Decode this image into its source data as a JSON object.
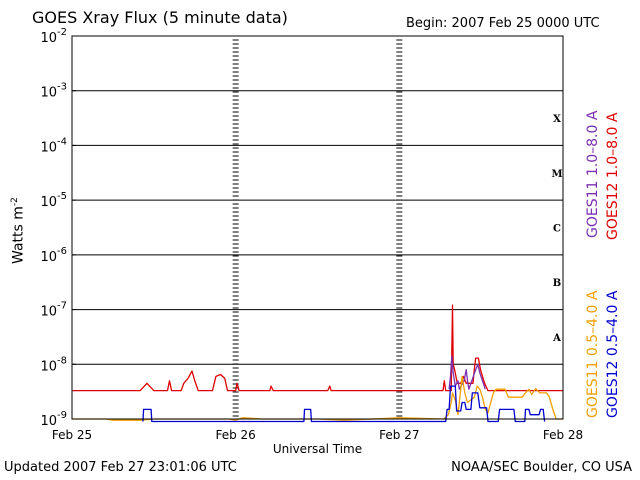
{
  "title": "GOES Xray Flux (5 minute data)",
  "begin": "Begin:  2007 Feb 25 0000 UTC",
  "updated": "Updated 2007 Feb 27 23:01:06 UTC",
  "credit": "NOAA/SEC Boulder, CO USA",
  "colors": {
    "goes11_long": "#7a2fb0",
    "goes12_long": "#e00000",
    "goes11_short": "#f0a000",
    "goes12_short": "#0000d0"
  },
  "chart_data": {
    "type": "line",
    "title": "GOES Xray Flux (5 minute data)",
    "xlabel": "Universal Time",
    "ylabel": "Watts m",
    "ylabel_sup": "-2",
    "yscale": "log",
    "ylim": [
      1e-09,
      0.01
    ],
    "xlim": [
      0,
      72
    ],
    "x_unit": "hours since 2007 Feb 25 0000 UTC",
    "x_ticks": [
      {
        "x": 0,
        "label": "Feb 25"
      },
      {
        "x": 24,
        "label": "Feb 26"
      },
      {
        "x": 48,
        "label": "Feb 27"
      },
      {
        "x": 72,
        "label": "Feb 28"
      }
    ],
    "y_ticks": [
      {
        "exp": -2,
        "base": "10",
        "sup": "-2"
      },
      {
        "exp": -3,
        "base": "10",
        "sup": "-3"
      },
      {
        "exp": -4,
        "base": "10",
        "sup": "-4"
      },
      {
        "exp": -5,
        "base": "10",
        "sup": "-5"
      },
      {
        "exp": -6,
        "base": "10",
        "sup": "-6"
      },
      {
        "exp": -7,
        "base": "10",
        "sup": "-7"
      },
      {
        "exp": -8,
        "base": "10",
        "sup": "-8"
      },
      {
        "exp": -9,
        "base": "10",
        "sup": "-9"
      }
    ],
    "flare_classes": [
      {
        "label": "X",
        "exp": -3.5
      },
      {
        "label": "M",
        "exp": -4.5
      },
      {
        "label": "C",
        "exp": -5.5
      },
      {
        "label": "B",
        "exp": -6.5
      },
      {
        "label": "A",
        "exp": -7.5
      }
    ],
    "grid": true,
    "legend": [
      {
        "label": "GOES11 1.0–8.0 A",
        "color": "#7a2fb0"
      },
      {
        "label": "GOES12 1.0–8.0 A",
        "color": "#e00000"
      },
      {
        "label": "GOES11 0.5–4.0 A",
        "color": "#f0a000"
      },
      {
        "label": "GOES12 0.5–4.0 A",
        "color": "#0000d0"
      }
    ],
    "series": [
      {
        "name": "GOES12 1.0–8.0 A",
        "color": "#e00000",
        "points": [
          [
            0,
            3.3e-09
          ],
          [
            10,
            3.3e-09
          ],
          [
            11,
            4.5e-09
          ],
          [
            12,
            3.3e-09
          ],
          [
            14,
            3.3e-09
          ],
          [
            14.3,
            5e-09
          ],
          [
            14.6,
            3.3e-09
          ],
          [
            16,
            3.3e-09
          ],
          [
            16.4,
            4.5e-09
          ],
          [
            17,
            5.5e-09
          ],
          [
            17.6,
            7.5e-09
          ],
          [
            18,
            5e-09
          ],
          [
            18.5,
            3.3e-09
          ],
          [
            20.6,
            3.3e-09
          ],
          [
            21.1,
            6e-09
          ],
          [
            21.8,
            6.5e-09
          ],
          [
            22.4,
            5.5e-09
          ],
          [
            22.8,
            3.3e-09
          ],
          [
            24,
            3.3e-09
          ],
          [
            24.2,
            4.5e-09
          ],
          [
            24.5,
            3.3e-09
          ],
          [
            29,
            3.3e-09
          ],
          [
            29.2,
            4e-09
          ],
          [
            29.5,
            3.3e-09
          ],
          [
            37.5,
            3.3e-09
          ],
          [
            37.8,
            4e-09
          ],
          [
            38,
            3.3e-09
          ],
          [
            48,
            3.3e-09
          ],
          [
            54.4,
            3.3e-09
          ],
          [
            54.6,
            5e-09
          ],
          [
            54.8,
            3.3e-09
          ],
          [
            55.6,
            3.3e-09
          ],
          [
            55.8,
            1.2e-07
          ],
          [
            55.9,
            1e-08
          ],
          [
            56.1,
            8e-09
          ],
          [
            56.5,
            4.5e-09
          ],
          [
            57,
            4.5e-09
          ],
          [
            57.4,
            6e-09
          ],
          [
            57.8,
            4.5e-09
          ],
          [
            58.8,
            4.5e-09
          ],
          [
            59,
            8e-09
          ],
          [
            59.2,
            1.3e-08
          ],
          [
            59.6,
            1.3e-08
          ],
          [
            59.9,
            8e-09
          ],
          [
            60.2,
            6e-09
          ],
          [
            60.5,
            4.5e-09
          ],
          [
            61,
            3.3e-09
          ],
          [
            72,
            3.3e-09
          ]
        ]
      },
      {
        "name": "GOES11 1.0–8.0 A",
        "color": "#7a2fb0",
        "points": [
          [
            55.3,
            3.5e-09
          ],
          [
            55.5,
            6e-09
          ],
          [
            55.7,
            1.4e-08
          ],
          [
            55.9,
            7e-09
          ],
          [
            56.2,
            4e-09
          ],
          [
            56.6,
            5e-09
          ],
          [
            56.8,
            3.5e-09
          ],
          [
            57.5,
            5e-09
          ],
          [
            57.8,
            8e-09
          ],
          [
            58,
            5e-09
          ],
          [
            58.2,
            3.5e-09
          ],
          [
            59.2,
            8e-09
          ],
          [
            59.5,
            1e-08
          ],
          [
            59.8,
            7e-09
          ],
          [
            60.2,
            5e-09
          ],
          [
            60.6,
            3.5e-09
          ]
        ]
      },
      {
        "name": "GOES11 0.5–4.0 A",
        "color": "#f0a000",
        "points": [
          [
            0,
            1e-09
          ],
          [
            5,
            1e-09
          ],
          [
            6,
            9.5e-10
          ],
          [
            10,
            9.5e-10
          ],
          [
            12,
            1e-09
          ],
          [
            20,
            1e-09
          ],
          [
            23,
            1e-09
          ],
          [
            24,
            9.5e-10
          ],
          [
            25,
            1.05e-09
          ],
          [
            28,
            1e-09
          ],
          [
            36,
            1e-09
          ],
          [
            40,
            9.5e-10
          ],
          [
            48,
            1.05e-09
          ],
          [
            54.5,
            1e-09
          ],
          [
            55.2,
            1.2e-09
          ],
          [
            55.6,
            2e-09
          ],
          [
            55.8,
            3e-09
          ],
          [
            56.2,
            2.2e-09
          ],
          [
            56.6,
            1.2e-09
          ],
          [
            57.2,
            6e-09
          ],
          [
            57.6,
            3e-09
          ],
          [
            58,
            2e-09
          ],
          [
            59,
            2.5e-09
          ],
          [
            59.4,
            4e-09
          ],
          [
            59.8,
            3.5e-09
          ],
          [
            60.2,
            2.5e-09
          ],
          [
            60.6,
            1.5e-09
          ],
          [
            61,
            1.3e-09
          ],
          [
            61.4,
            2e-09
          ],
          [
            61.8,
            3e-09
          ],
          [
            62.2,
            3.5e-09
          ],
          [
            63.5,
            3.5e-09
          ],
          [
            64,
            2.5e-09
          ],
          [
            66,
            2.5e-09
          ],
          [
            66.5,
            3e-09
          ],
          [
            67,
            3.5e-09
          ],
          [
            67.4,
            2.8e-09
          ],
          [
            68,
            3.6e-09
          ],
          [
            68.6,
            3e-09
          ],
          [
            69.6,
            3e-09
          ],
          [
            70,
            2.5e-09
          ],
          [
            70.5,
            1.5e-09
          ],
          [
            71,
            1e-09
          ],
          [
            72,
            1e-09
          ]
        ]
      },
      {
        "name": "GOES12 0.5–4.0 A",
        "color": "#0000d0",
        "points": [
          [
            10.4,
            9e-10
          ],
          [
            10.5,
            1.5e-09
          ],
          [
            11.6,
            1.5e-09
          ],
          [
            11.7,
            9e-10
          ],
          [
            34,
            9e-10
          ],
          [
            34.1,
            1.5e-09
          ],
          [
            35,
            1.5e-09
          ],
          [
            35.1,
            9e-10
          ],
          [
            54.8,
            9e-10
          ],
          [
            55,
            1.5e-09
          ],
          [
            55.3,
            1.5e-09
          ],
          [
            55.5,
            4e-09
          ],
          [
            56.2,
            4e-09
          ],
          [
            56.4,
            1.4e-09
          ],
          [
            57,
            1.4e-09
          ],
          [
            57.2,
            2e-09
          ],
          [
            57.6,
            2e-09
          ],
          [
            57.8,
            1.5e-09
          ],
          [
            58.5,
            1.5e-09
          ],
          [
            58.7,
            3e-09
          ],
          [
            59.5,
            3e-09
          ],
          [
            59.8,
            1.6e-09
          ],
          [
            60.8,
            1.6e-09
          ],
          [
            61,
            9e-10
          ],
          [
            62.5,
            9e-10
          ],
          [
            62.7,
            1.5e-09
          ],
          [
            64.8,
            1.5e-09
          ],
          [
            65,
            9e-10
          ],
          [
            66.4,
            9e-10
          ],
          [
            66.5,
            1.5e-09
          ],
          [
            67,
            1.5e-09
          ],
          [
            67.2,
            1.2e-09
          ],
          [
            68.5,
            1.2e-09
          ],
          [
            68.7,
            1.5e-09
          ],
          [
            69.1,
            1.5e-09
          ],
          [
            69.3,
            9e-10
          ]
        ]
      }
    ]
  }
}
